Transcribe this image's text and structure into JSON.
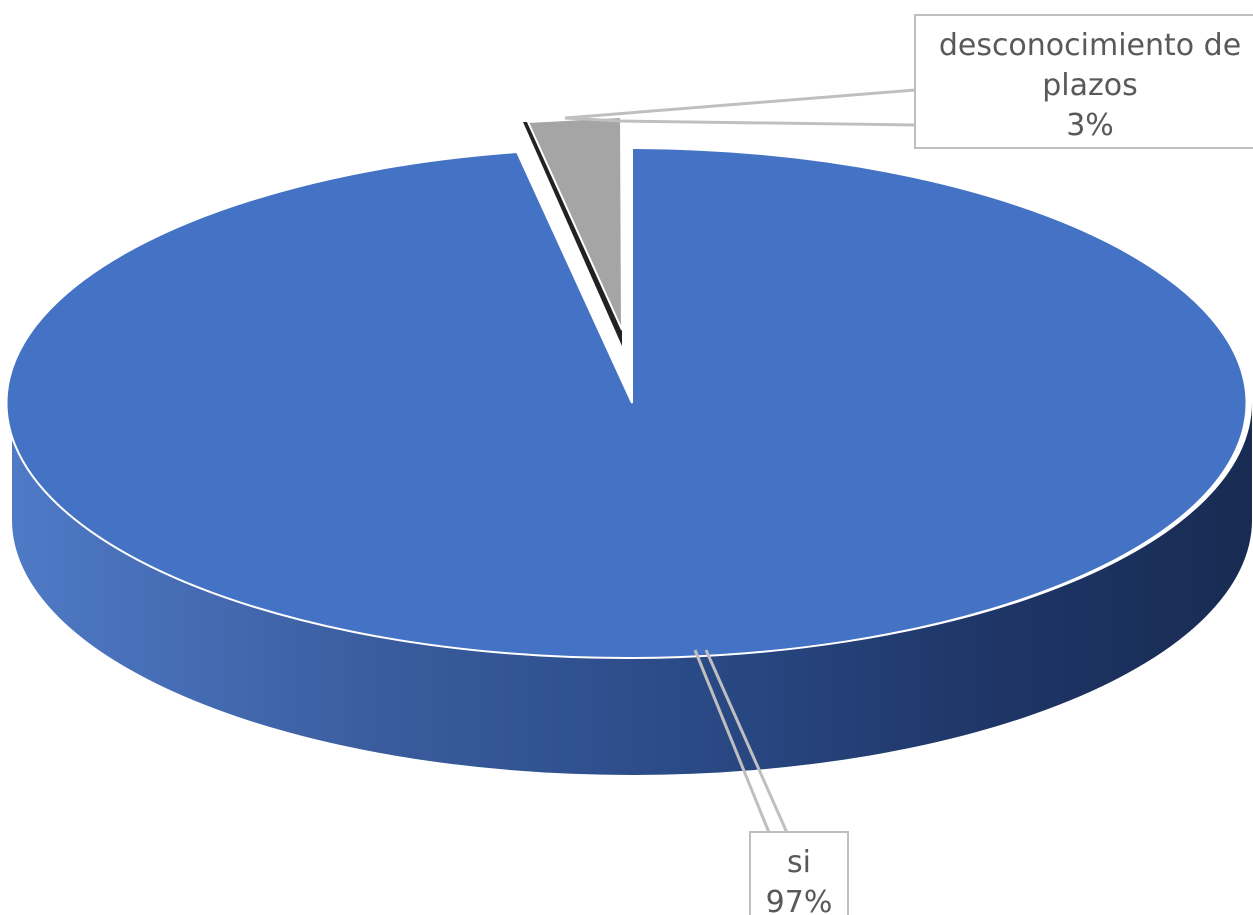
{
  "chart_data": {
    "type": "pie",
    "style": "3d",
    "slices": [
      {
        "name": "si",
        "value": 97,
        "label_name": "si",
        "label_value": "97%",
        "color": "#4472C4"
      },
      {
        "name": "desconocimiento de plazos",
        "value": 3,
        "label_name_lines": [
          "desconocimiento de",
          "plazos"
        ],
        "label_value": "3%",
        "color": "#A5A5A5",
        "exploded": true
      }
    ],
    "legend": "none",
    "title": ""
  }
}
